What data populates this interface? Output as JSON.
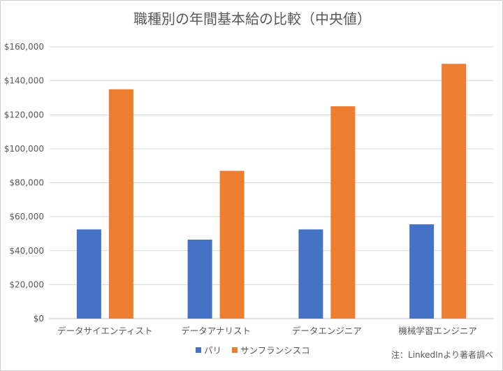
{
  "chart_data": {
    "type": "bar",
    "title": "職種別の年間基本給の比較（中央値）",
    "categories": [
      "データサイエンティスト",
      "データアナリスト",
      "データエンジニア",
      "機械学習エンジニア"
    ],
    "series": [
      {
        "name": "パリ",
        "values": [
          52500,
          46500,
          52500,
          55500
        ],
        "color": "#4472c4"
      },
      {
        "name": "サンフランシスコ",
        "values": [
          135000,
          87000,
          125000,
          150000
        ],
        "color": "#ed7d31"
      }
    ],
    "ylim": [
      0,
      160000
    ],
    "yticks": [
      0,
      20000,
      40000,
      60000,
      80000,
      100000,
      120000,
      140000,
      160000
    ],
    "ytick_labels": [
      "$0",
      "$20,000",
      "$40,000",
      "$60,000",
      "$80,000",
      "$100,000",
      "$120,000",
      "$140,000",
      "$160,000"
    ],
    "xlabel": "",
    "ylabel": "",
    "grid": true,
    "legend_position": "bottom",
    "note": "注：LinkedInより著者調べ"
  }
}
